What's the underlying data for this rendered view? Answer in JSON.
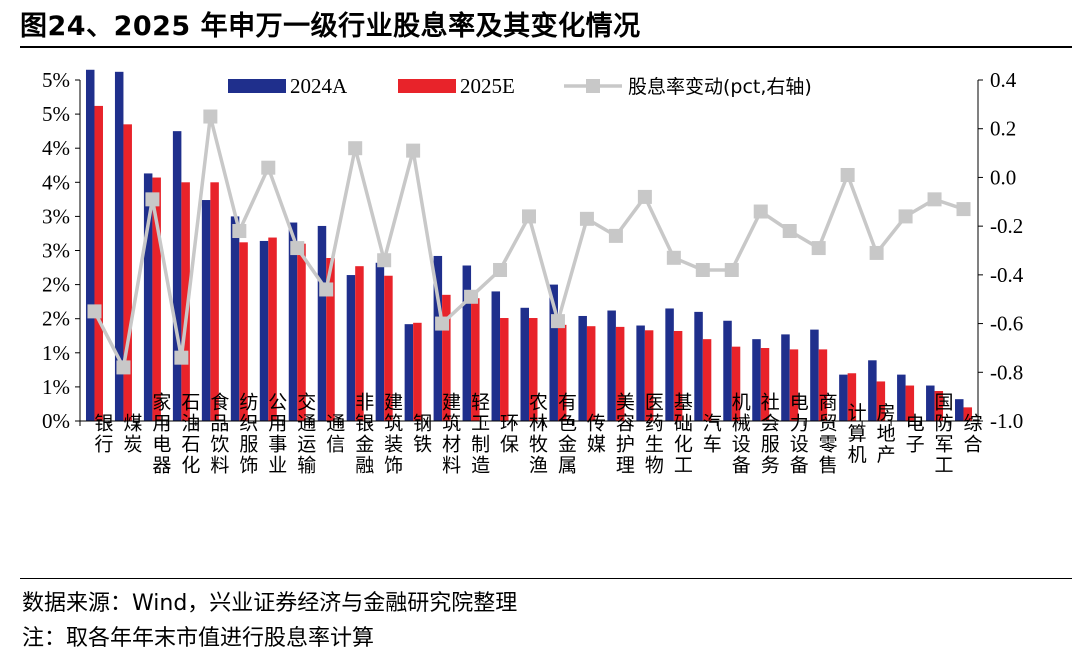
{
  "header": {
    "title": "图24、2025 年申万一级行业股息率及其变化情况"
  },
  "footer": {
    "source": "数据来源：Wind，兴业证券经济与金融研究院整理",
    "note": "注：取各年年末市值进行股息率计算"
  },
  "colors": {
    "series_2024": "#1f2f8c",
    "series_2025": "#e8232a",
    "series_change": "#c8c8c8"
  },
  "chart_data": {
    "type": "bar",
    "categories": [
      "银行",
      "煤炭",
      "家用电器",
      "石油石化",
      "食品饮料",
      "纺织服饰",
      "公用事业",
      "交通运输",
      "通信",
      "非银金融",
      "建筑装饰",
      "钢铁",
      "建筑材料",
      "轻工制造",
      "环保",
      "农林牧渔",
      "有色金属",
      "传媒",
      "美容护理",
      "医药生物",
      "基础化工",
      "汽车",
      "机械设备",
      "社会服务",
      "电力设备",
      "商贸零售",
      "计算机",
      "房地产",
      "电子",
      "国防军工",
      "综合"
    ],
    "series": [
      {
        "name": "2024A",
        "axis": "left",
        "kind": "bar",
        "values": [
          5.15,
          5.12,
          3.63,
          4.25,
          3.24,
          3.0,
          2.64,
          2.91,
          2.86,
          2.14,
          2.32,
          1.42,
          2.42,
          2.28,
          1.9,
          1.66,
          2.0,
          1.54,
          1.62,
          1.4,
          1.65,
          1.6,
          1.47,
          1.2,
          1.27,
          1.34,
          0.68,
          0.89,
          0.68,
          0.52,
          0.32
        ]
      },
      {
        "name": "2025E",
        "axis": "left",
        "kind": "bar",
        "values": [
          4.62,
          4.35,
          3.57,
          3.5,
          3.5,
          2.62,
          2.69,
          2.6,
          2.39,
          2.27,
          2.13,
          1.44,
          1.85,
          1.8,
          1.51,
          1.51,
          1.41,
          1.39,
          1.38,
          1.33,
          1.32,
          1.2,
          1.09,
          1.07,
          1.05,
          1.05,
          0.7,
          0.58,
          0.52,
          0.44,
          0.2
        ]
      },
      {
        "name": "股息率变动(pct,右轴)",
        "axis": "right",
        "kind": "line",
        "values": [
          -0.55,
          -0.78,
          -0.09,
          -0.74,
          0.25,
          -0.22,
          0.04,
          -0.29,
          -0.46,
          0.12,
          -0.34,
          0.11,
          -0.6,
          -0.49,
          -0.38,
          -0.16,
          -0.59,
          -0.17,
          -0.24,
          -0.08,
          -0.33,
          -0.38,
          -0.38,
          -0.14,
          -0.22,
          -0.29,
          0.01,
          -0.31,
          -0.16,
          -0.09,
          -0.13
        ]
      }
    ],
    "left_axis": {
      "ylim": [
        0,
        5
      ],
      "tick_labels": [
        "0%",
        "1%",
        "1%",
        "2%",
        "2%",
        "3%",
        "3%",
        "4%",
        "4%",
        "5%",
        "5%"
      ]
    },
    "right_axis": {
      "ylim": [
        -1.0,
        0.4
      ],
      "tick_labels": [
        "-1.0",
        "-0.8",
        "-0.6",
        "-0.4",
        "-0.2",
        "0.0",
        "0.2",
        "0.4"
      ]
    },
    "legend": {
      "placement": "top",
      "entries": [
        "2024A",
        "2025E",
        "股息率变动(pct,右轴)"
      ]
    },
    "grid": false
  }
}
